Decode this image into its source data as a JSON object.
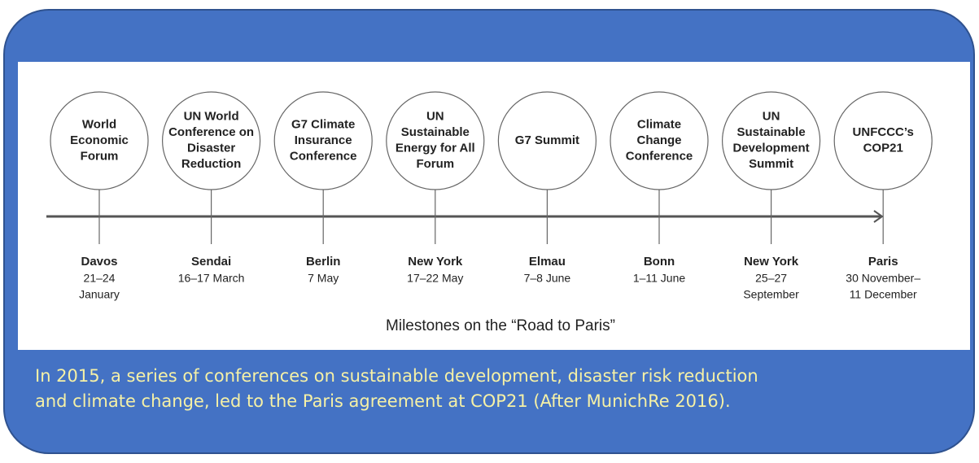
{
  "milestones": [
    {
      "label": [
        "World",
        "Economic",
        "Forum"
      ],
      "location": "Davos",
      "date": [
        "21–24",
        "January"
      ]
    },
    {
      "label": [
        "UN World",
        "Conference on",
        "Disaster",
        "Reduction"
      ],
      "location": "Sendai",
      "date": [
        "16–17 March"
      ]
    },
    {
      "label": [
        "G7 Climate",
        "Insurance",
        "Conference"
      ],
      "location": "Berlin",
      "date": [
        "7 May"
      ]
    },
    {
      "label": [
        "UN",
        "Sustainable",
        "Energy for All",
        "Forum"
      ],
      "location": "New York",
      "date": [
        "17–22 May"
      ]
    },
    {
      "label": [
        "G7 Summit"
      ],
      "location": "Elmau",
      "date": [
        "7–8 June"
      ]
    },
    {
      "label": [
        "Climate",
        "Change",
        "Conference"
      ],
      "location": "Bonn",
      "date": [
        "1–11 June"
      ]
    },
    {
      "label": [
        "UN",
        "Sustainable",
        "Development",
        "Summit"
      ],
      "location": "New York",
      "date": [
        "25–27",
        "September"
      ]
    },
    {
      "label": [
        "UNFCCC’s",
        "COP21"
      ],
      "location": "Paris",
      "date": [
        "30 November–",
        "11 December"
      ]
    }
  ],
  "caption": "Milestones on the “Road to Paris”",
  "footer": [
    "In 2015, a series of conferences on sustainable development, disaster risk reduction",
    "and climate change, led to the Paris agreement at COP21 (After MunichRe 2016)."
  ]
}
